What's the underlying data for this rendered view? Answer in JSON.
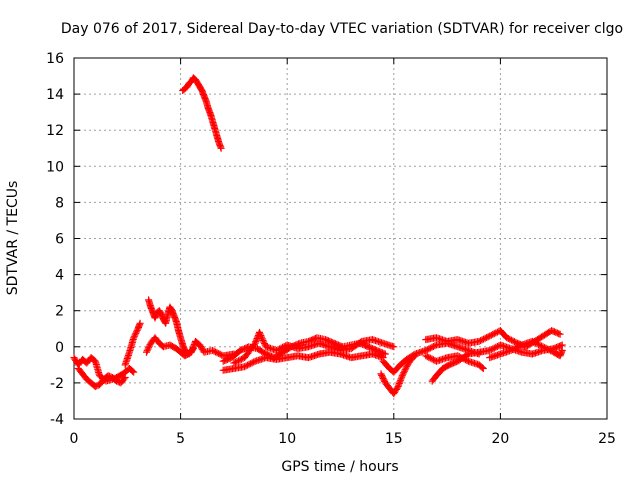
{
  "chart_data": {
    "type": "scatter",
    "title": "Day 076 of 2017, Sidereal Day-to-day VTEC variation (SDTVAR) for receiver clgo",
    "xlabel": "GPS time / hours",
    "ylabel": "SDTVAR / TECUs",
    "xlim": [
      0,
      25
    ],
    "ylim": [
      -4,
      16
    ],
    "xticks": [
      0,
      5,
      10,
      15,
      20,
      25
    ],
    "yticks": [
      -4,
      -2,
      0,
      2,
      4,
      6,
      8,
      10,
      12,
      14,
      16
    ],
    "grid": true,
    "marker": "+",
    "color": "#ff0000",
    "series": [
      {
        "name": "clgo",
        "tracks": [
          [
            [
              0.0,
              -0.6
            ],
            [
              0.2,
              -1.0
            ],
            [
              0.4,
              -0.7
            ],
            [
              0.6,
              -0.9
            ],
            [
              0.8,
              -0.6
            ],
            [
              1.0,
              -0.8
            ],
            [
              1.2,
              -1.6
            ],
            [
              1.5,
              -1.9
            ],
            [
              1.8,
              -1.8
            ],
            [
              2.0,
              -1.7
            ],
            [
              2.3,
              -1.5
            ],
            [
              2.6,
              -1.2
            ],
            [
              2.8,
              -1.4
            ]
          ],
          [
            [
              0.2,
              -1.2
            ],
            [
              0.4,
              -1.5
            ],
            [
              0.6,
              -1.8
            ],
            [
              0.8,
              -2.0
            ],
            [
              1.0,
              -2.2
            ],
            [
              1.2,
              -2.1
            ],
            [
              1.4,
              -1.8
            ],
            [
              1.6,
              -1.6
            ],
            [
              1.8,
              -1.7
            ],
            [
              2.0,
              -1.9
            ],
            [
              2.2,
              -2.0
            ],
            [
              2.4,
              -1.7
            ]
          ],
          [
            [
              2.4,
              -1.0
            ],
            [
              2.6,
              -0.3
            ],
            [
              2.8,
              0.5
            ],
            [
              3.0,
              1.0
            ],
            [
              3.1,
              1.3
            ]
          ],
          [
            [
              3.5,
              2.6
            ],
            [
              3.6,
              2.2
            ],
            [
              3.7,
              1.9
            ],
            [
              3.8,
              1.6
            ],
            [
              3.9,
              1.9
            ],
            [
              4.0,
              2.0
            ],
            [
              4.1,
              1.8
            ],
            [
              4.2,
              1.5
            ],
            [
              4.3,
              1.3
            ],
            [
              4.4,
              1.8
            ],
            [
              4.5,
              2.2
            ],
            [
              4.6,
              2.0
            ],
            [
              4.7,
              1.7
            ],
            [
              4.8,
              1.4
            ],
            [
              4.9,
              0.9
            ],
            [
              5.0,
              0.5
            ],
            [
              5.1,
              0.1
            ],
            [
              5.2,
              -0.2
            ],
            [
              5.4,
              -0.4
            ],
            [
              5.6,
              -0.1
            ]
          ],
          [
            [
              3.4,
              -0.3
            ],
            [
              3.6,
              0.2
            ],
            [
              3.8,
              0.5
            ],
            [
              4.0,
              0.2
            ],
            [
              4.2,
              0.0
            ],
            [
              4.5,
              0.1
            ],
            [
              4.8,
              -0.1
            ],
            [
              5.0,
              -0.3
            ],
            [
              5.2,
              -0.5
            ],
            [
              5.5,
              -0.3
            ],
            [
              5.7,
              0.3
            ],
            [
              5.9,
              0.1
            ],
            [
              6.1,
              -0.3
            ],
            [
              6.5,
              -0.2
            ],
            [
              7.0,
              -0.5
            ],
            [
              7.5,
              -0.4
            ]
          ],
          [
            [
              5.1,
              14.2
            ],
            [
              5.2,
              14.3
            ],
            [
              5.3,
              14.4
            ],
            [
              5.4,
              14.6
            ],
            [
              5.5,
              14.7
            ],
            [
              5.6,
              14.9
            ],
            [
              5.7,
              14.8
            ],
            [
              5.8,
              14.6
            ],
            [
              5.9,
              14.4
            ],
            [
              6.0,
              14.2
            ],
            [
              6.1,
              13.9
            ],
            [
              6.2,
              13.6
            ],
            [
              6.3,
              13.2
            ],
            [
              6.4,
              12.9
            ],
            [
              6.5,
              12.5
            ],
            [
              6.6,
              12.1
            ],
            [
              6.7,
              11.7
            ],
            [
              6.8,
              11.3
            ],
            [
              6.9,
              11.0
            ]
          ],
          [
            [
              7.0,
              -0.8
            ],
            [
              7.4,
              -0.6
            ],
            [
              7.8,
              -0.2
            ],
            [
              8.2,
              0.0
            ],
            [
              8.6,
              -0.1
            ],
            [
              9.0,
              -0.4
            ],
            [
              9.4,
              -0.6
            ],
            [
              9.8,
              -0.3
            ],
            [
              10.2,
              0.0
            ],
            [
              10.6,
              0.2
            ],
            [
              11.0,
              0.3
            ],
            [
              11.4,
              0.5
            ],
            [
              11.8,
              0.4
            ],
            [
              12.2,
              0.2
            ],
            [
              12.6,
              0.0
            ],
            [
              13.0,
              0.1
            ],
            [
              13.4,
              0.2
            ],
            [
              13.8,
              0.0
            ],
            [
              14.2,
              -0.2
            ],
            [
              14.6,
              -0.4
            ]
          ],
          [
            [
              7.0,
              -1.3
            ],
            [
              7.5,
              -1.2
            ],
            [
              8.0,
              -1.1
            ],
            [
              8.5,
              -0.8
            ],
            [
              9.0,
              -0.6
            ],
            [
              9.5,
              -0.7
            ],
            [
              10.0,
              -0.6
            ],
            [
              10.5,
              -0.5
            ],
            [
              11.0,
              -0.6
            ],
            [
              11.5,
              -0.4
            ],
            [
              12.0,
              -0.3
            ],
            [
              12.5,
              -0.4
            ],
            [
              13.0,
              -0.6
            ],
            [
              13.5,
              -0.5
            ],
            [
              14.0,
              -0.4
            ],
            [
              14.5,
              -0.6
            ]
          ],
          [
            [
              7.5,
              -0.9
            ],
            [
              8.0,
              -0.6
            ],
            [
              8.5,
              0.2
            ],
            [
              8.7,
              0.8
            ],
            [
              9.0,
              0.0
            ],
            [
              9.5,
              -0.2
            ],
            [
              10.0,
              0.1
            ],
            [
              10.5,
              -0.1
            ],
            [
              11.0,
              0.0
            ],
            [
              11.5,
              0.2
            ],
            [
              12.0,
              0.0
            ],
            [
              12.5,
              -0.2
            ],
            [
              13.0,
              -0.1
            ],
            [
              13.5,
              0.3
            ],
            [
              14.0,
              0.4
            ],
            [
              14.5,
              0.2
            ],
            [
              15.0,
              0.0
            ]
          ],
          [
            [
              14.4,
              -1.5
            ],
            [
              14.6,
              -2.0
            ],
            [
              14.8,
              -2.3
            ],
            [
              15.0,
              -2.6
            ],
            [
              15.2,
              -2.2
            ],
            [
              15.4,
              -1.6
            ],
            [
              15.6,
              -1.1
            ],
            [
              15.8,
              -0.7
            ],
            [
              16.0,
              -0.5
            ]
          ],
          [
            [
              14.5,
              -0.8
            ],
            [
              14.8,
              -1.2
            ],
            [
              15.0,
              -1.4
            ],
            [
              15.3,
              -1.0
            ],
            [
              15.6,
              -0.7
            ],
            [
              16.0,
              -0.4
            ],
            [
              16.5,
              -0.2
            ],
            [
              17.0,
              0.1
            ],
            [
              17.5,
              0.2
            ],
            [
              18.0,
              0.0
            ],
            [
              18.5,
              -0.2
            ],
            [
              19.0,
              -0.4
            ]
          ],
          [
            [
              16.5,
              -0.5
            ],
            [
              17.0,
              -0.8
            ],
            [
              17.5,
              -0.6
            ],
            [
              18.0,
              -0.5
            ],
            [
              18.5,
              -0.8
            ],
            [
              19.0,
              -1.0
            ],
            [
              19.2,
              -1.2
            ]
          ],
          [
            [
              16.5,
              0.4
            ],
            [
              17.0,
              0.5
            ],
            [
              17.5,
              0.3
            ],
            [
              18.0,
              0.4
            ],
            [
              18.5,
              0.2
            ],
            [
              19.0,
              0.3
            ],
            [
              19.5,
              0.6
            ],
            [
              20.0,
              0.9
            ],
            [
              20.3,
              0.5
            ],
            [
              20.8,
              0.2
            ],
            [
              21.2,
              0.0
            ],
            [
              21.6,
              0.3
            ],
            [
              22.0,
              0.6
            ],
            [
              22.4,
              0.9
            ],
            [
              22.8,
              0.7
            ]
          ],
          [
            [
              16.8,
              -1.9
            ],
            [
              17.0,
              -1.6
            ],
            [
              17.3,
              -1.2
            ],
            [
              17.6,
              -1.0
            ],
            [
              18.0,
              -0.8
            ],
            [
              18.5,
              -0.4
            ],
            [
              19.0,
              -0.3
            ],
            [
              19.5,
              -0.2
            ],
            [
              20.0,
              0.1
            ],
            [
              20.5,
              -0.1
            ],
            [
              21.0,
              -0.3
            ],
            [
              21.5,
              -0.4
            ],
            [
              22.0,
              -0.2
            ],
            [
              22.5,
              -0.1
            ],
            [
              22.9,
              0.1
            ]
          ],
          [
            [
              19.5,
              -0.6
            ],
            [
              20.0,
              -0.4
            ],
            [
              20.5,
              -0.2
            ],
            [
              21.0,
              0.1
            ],
            [
              21.5,
              0.3
            ],
            [
              22.0,
              0.0
            ],
            [
              22.5,
              -0.3
            ],
            [
              22.8,
              -0.5
            ],
            [
              22.9,
              -0.2
            ]
          ]
        ]
      }
    ]
  }
}
